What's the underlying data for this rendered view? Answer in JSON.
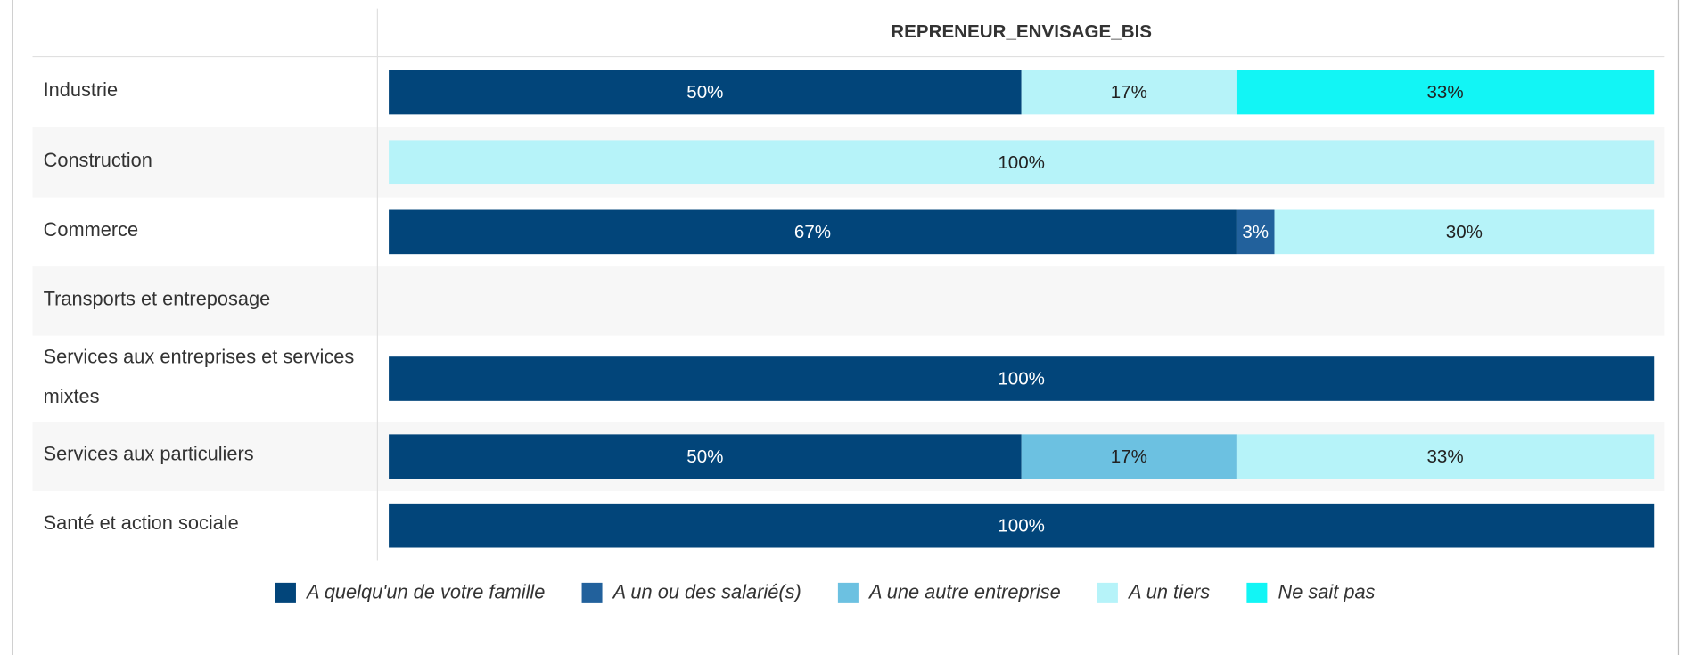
{
  "chart_data": {
    "type": "stacked_bar_horizontal",
    "title": "REPRENEUR_ENVISAGE_BIS",
    "categories": [
      "Industrie",
      "Construction",
      "Commerce",
      "Transports et entreposage",
      "Services aux entreprises et services mixtes",
      "Services aux particuliers",
      "Santé et action sociale"
    ],
    "series": [
      {
        "name": "A quelqu'un de votre famille",
        "color": "#02457a",
        "values": [
          50,
          0,
          67,
          null,
          100,
          50,
          100
        ],
        "value_labels": [
          "50%",
          null,
          "67%",
          null,
          "100%",
          "50%",
          "100%"
        ]
      },
      {
        "name": "A un ou des salarié(s)",
        "color": "#22619c",
        "values": [
          0,
          0,
          3,
          null,
          0,
          0,
          0
        ],
        "value_labels": [
          null,
          null,
          "3%",
          null,
          null,
          null,
          null
        ]
      },
      {
        "name": "A une autre entreprise",
        "color": "#6cc1e1",
        "values": [
          0,
          0,
          0,
          null,
          0,
          17,
          0
        ],
        "value_labels": [
          null,
          null,
          null,
          null,
          null,
          "17%",
          null
        ]
      },
      {
        "name": "A un tiers",
        "color": "#b6f3f9",
        "values": [
          17,
          100,
          30,
          null,
          0,
          33,
          0
        ],
        "value_labels": [
          "17%",
          "100%",
          "30%",
          null,
          null,
          "33%",
          null
        ]
      },
      {
        "name": "Ne sait pas",
        "color": "#12f5f5",
        "values": [
          33,
          0,
          0,
          null,
          0,
          0,
          0
        ],
        "value_labels": [
          "33%",
          null,
          null,
          null,
          null,
          null,
          null
        ]
      }
    ],
    "xlim": [
      0,
      100
    ],
    "legend": "bottom"
  }
}
